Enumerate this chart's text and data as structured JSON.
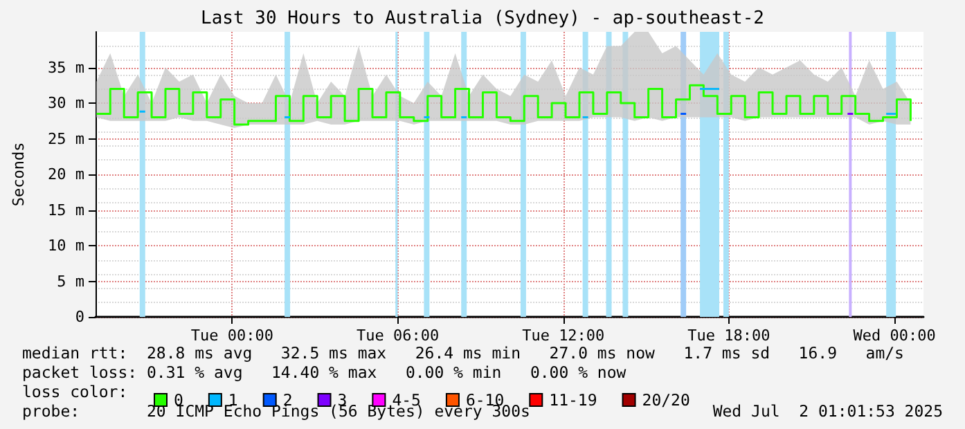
{
  "chart_data": {
    "type": "step",
    "title": "Last 30 Hours to Australia (Sydney) - ap-southeast-2",
    "ylabel": "Seconds",
    "x": [
      "2025-06-30T19:05",
      "2025-06-30T19:35",
      "2025-06-30T20:05",
      "2025-06-30T20:35",
      "2025-06-30T21:05",
      "2025-06-30T21:35",
      "2025-06-30T22:05",
      "2025-06-30T22:35",
      "2025-06-30T23:05",
      "2025-06-30T23:35",
      "2025-07-01T00:05",
      "2025-07-01T00:35",
      "2025-07-01T01:05",
      "2025-07-01T01:35",
      "2025-07-01T02:05",
      "2025-07-01T02:35",
      "2025-07-01T03:05",
      "2025-07-01T03:35",
      "2025-07-01T04:05",
      "2025-07-01T04:35",
      "2025-07-01T05:05",
      "2025-07-01T05:35",
      "2025-07-01T06:05",
      "2025-07-01T06:35",
      "2025-07-01T07:05",
      "2025-07-01T07:35",
      "2025-07-01T08:05",
      "2025-07-01T08:35",
      "2025-07-01T09:05",
      "2025-07-01T09:35",
      "2025-07-01T10:05",
      "2025-07-01T10:35",
      "2025-07-01T11:05",
      "2025-07-01T11:35",
      "2025-07-01T12:05",
      "2025-07-01T12:35",
      "2025-07-01T13:05",
      "2025-07-01T13:35",
      "2025-07-01T14:05",
      "2025-07-01T14:35",
      "2025-07-01T15:05",
      "2025-07-01T15:35",
      "2025-07-01T16:05",
      "2025-07-01T16:35",
      "2025-07-01T17:05",
      "2025-07-01T17:35",
      "2025-07-01T18:05",
      "2025-07-01T18:35",
      "2025-07-01T19:05",
      "2025-07-01T19:35",
      "2025-07-01T20:05",
      "2025-07-01T20:35",
      "2025-07-01T21:05",
      "2025-07-01T21:35",
      "2025-07-01T22:05",
      "2025-07-01T22:35",
      "2025-07-01T23:05",
      "2025-07-01T23:35",
      "2025-07-02T00:05",
      "2025-07-02T00:35"
    ],
    "series": [
      {
        "name": "0",
        "color": "#26ff00",
        "values": [
          28.5,
          32,
          28,
          31.5,
          28,
          32,
          28.5,
          31.5,
          28,
          30.5,
          27,
          27.5,
          27.5,
          31,
          27.5,
          31,
          28,
          31,
          27.5,
          32,
          28,
          31.5,
          28,
          27.5,
          31,
          28,
          32,
          28,
          31.5,
          28,
          27.5,
          31,
          28,
          30,
          28,
          31.5,
          28.5,
          31.5,
          30,
          28,
          32,
          28,
          30.5,
          32.5,
          31,
          28.5,
          31,
          28,
          31.5,
          28.5,
          31,
          28.5,
          31,
          28.5,
          31,
          28.5,
          27.5,
          28,
          30.5,
          27.5
        ],
        "lower": [
          28,
          27.5,
          27.5,
          27.5,
          27.5,
          27.5,
          28,
          27.5,
          27.5,
          27,
          26.5,
          27,
          27,
          27,
          27,
          27,
          27.5,
          27,
          27,
          27.5,
          27.5,
          27.5,
          27.5,
          27,
          27.5,
          27.5,
          27.5,
          27.5,
          27.5,
          27.5,
          27,
          27,
          27.5,
          27.5,
          27.5,
          27.5,
          28,
          28,
          28,
          27.5,
          28,
          27.5,
          28,
          28,
          28,
          28,
          28,
          27.5,
          28,
          28,
          28,
          28,
          28,
          28,
          28,
          28,
          27,
          27.5,
          27,
          27
        ],
        "upper": [
          33,
          37,
          31,
          34,
          30,
          35,
          33,
          34,
          30,
          34,
          31,
          30,
          30,
          34,
          30,
          37,
          30,
          33,
          31,
          38,
          31,
          34,
          31,
          30,
          33,
          31,
          37,
          31,
          34,
          32,
          31,
          34,
          33,
          36,
          31,
          35,
          34,
          38,
          38,
          40,
          40,
          37,
          38,
          36,
          34,
          37,
          34,
          33,
          35,
          34,
          35,
          36,
          34,
          33,
          35,
          31,
          36,
          32,
          33,
          30
        ]
      },
      {
        "name": "1",
        "type": "line",
        "color": "#00b8ff",
        "x": [
          "2025-06-30T20:39",
          "2025-06-30T20:51"
        ],
        "values": [
          28.8,
          28.8
        ]
      },
      {
        "type": "line",
        "color": "#02b8fe",
        "x": [
          "2025-07-01T01:54",
          "2025-07-01T02:06"
        ],
        "values": [
          28,
          28
        ]
      },
      {
        "type": "line",
        "color": "#04b8fd",
        "x": [
          "2025-07-01T06:57",
          "2025-07-01T07:09"
        ],
        "values": [
          28,
          28
        ]
      },
      {
        "type": "line",
        "color": "#06b8fc",
        "x": [
          "2025-07-01T08:18",
          "2025-07-01T08:30"
        ],
        "values": [
          28,
          28
        ]
      },
      {
        "type": "line",
        "color": "#08b8fb",
        "x": [
          "2025-07-01T12:42",
          "2025-07-01T12:54"
        ],
        "values": [
          28,
          28
        ]
      },
      {
        "type": "line",
        "color": "#0ab8fa",
        "x": [
          "2025-07-01T16:57",
          "2025-07-01T17:39"
        ],
        "values": [
          32,
          32
        ]
      },
      {
        "type": "line",
        "color": "#0cb8f9",
        "x": [
          "2025-07-01T23:42",
          "2025-07-02T00:03"
        ],
        "values": [
          28.5,
          28.5
        ]
      },
      {
        "name": "2",
        "type": "line",
        "color": "#0059ff",
        "x": [
          "2025-07-01T16:15",
          "2025-07-01T16:27"
        ],
        "values": [
          28.5,
          28.5
        ]
      },
      {
        "name": "3",
        "type": "line",
        "color": "#7e00ff",
        "x": [
          "2025-07-01T22:18",
          "2025-07-01T22:30"
        ],
        "values": [
          28.5,
          28.5
        ]
      },
      {
        "name": "4-5",
        "color": "#ff00ff",
        "values": [
          null,
          null,
          null,
          null,
          null,
          null,
          null,
          null,
          null,
          null,
          null,
          null,
          null,
          null,
          null,
          null,
          null,
          null,
          null,
          null,
          null,
          null,
          null,
          null,
          null,
          null,
          null,
          null,
          null,
          null,
          null,
          null,
          null,
          null,
          null,
          null,
          null,
          null,
          null,
          null,
          null,
          null,
          null,
          null,
          null,
          null,
          null,
          null,
          null,
          null,
          null,
          null,
          null,
          null,
          null,
          null,
          null,
          null,
          null,
          null
        ]
      },
      {
        "name": "6-10",
        "color": "#ff5500",
        "values": [
          null,
          null,
          null,
          null,
          null,
          null,
          null,
          null,
          null,
          null,
          null,
          null,
          null,
          null,
          null,
          null,
          null,
          null,
          null,
          null,
          null,
          null,
          null,
          null,
          null,
          null,
          null,
          null,
          null,
          null,
          null,
          null,
          null,
          null,
          null,
          null,
          null,
          null,
          null,
          null,
          null,
          null,
          null,
          null,
          null,
          null,
          null,
          null,
          null,
          null,
          null,
          null,
          null,
          null,
          null,
          null,
          null,
          null,
          null,
          null
        ]
      },
      {
        "name": "11-19",
        "color": "#ff0000",
        "values": [
          null,
          null,
          null,
          null,
          null,
          null,
          null,
          null,
          null,
          null,
          null,
          null,
          null,
          null,
          null,
          null,
          null,
          null,
          null,
          null,
          null,
          null,
          null,
          null,
          null,
          null,
          null,
          null,
          null,
          null,
          null,
          null,
          null,
          null,
          null,
          null,
          null,
          null,
          null,
          null,
          null,
          null,
          null,
          null,
          null,
          null,
          null,
          null,
          null,
          null,
          null,
          null,
          null,
          null,
          null,
          null,
          null,
          null,
          null,
          null
        ]
      },
      {
        "name": "20/20",
        "color": "#a10000",
        "values": [
          null,
          null,
          null,
          null,
          null,
          null,
          null,
          null,
          null,
          null,
          null,
          null,
          null,
          null,
          null,
          null,
          null,
          null,
          null,
          null,
          null,
          null,
          null,
          null,
          null,
          null,
          null,
          null,
          null,
          null,
          null,
          null,
          null,
          null,
          null,
          null,
          null,
          null,
          null,
          null,
          null,
          null,
          null,
          null,
          null,
          null,
          null,
          null,
          null,
          null,
          null,
          null,
          null,
          null,
          null,
          null,
          null,
          null,
          null,
          null
        ]
      }
    ],
    "legend_title": "loss color:",
    "legend": "bottom left",
    "xlim": [
      "2025-06-30T19:03",
      "2025-07-02T01:03"
    ],
    "xticks": [
      {
        "value": "2025-07-01T00:00",
        "label": "Tue 00:00"
      },
      {
        "value": "2025-07-01T06:00",
        "label": "Tue 06:00"
      },
      {
        "value": "2025-07-01T12:00",
        "label": "Tue 12:00"
      },
      {
        "value": "2025-07-01T18:00",
        "label": "Tue 18:00"
      },
      {
        "value": "2025-07-02T00:00",
        "label": "Wed 00:00"
      }
    ],
    "ylim": [
      0,
      40
    ],
    "yticks": [
      0,
      {
        "value": 5,
        "label": "5 m"
      },
      {
        "value": 10,
        "label": "10 m"
      },
      {
        "value": 15,
        "label": "15 m"
      },
      {
        "value": 20,
        "label": "20 m"
      },
      {
        "value": 25,
        "label": "25 m"
      },
      {
        "value": 30,
        "label": "30 m"
      },
      {
        "value": 35,
        "label": "35 m"
      }
    ],
    "grid": true,
    "bands": [
      {
        "axis": "x",
        "from": "2025-06-30T20:39",
        "to": "2025-06-30T20:51",
        "color": "#a8e2f8"
      },
      {
        "axis": "x",
        "from": "2025-07-01T01:54",
        "to": "2025-07-01T02:06",
        "color": "#a8e2f8"
      },
      {
        "axis": "x",
        "from": "2025-07-01T05:55",
        "to": "2025-07-01T06:00",
        "color": "#a8e2f8"
      },
      {
        "axis": "x",
        "from": "2025-07-01T06:57",
        "to": "2025-07-01T07:09",
        "color": "#a8e2f8"
      },
      {
        "axis": "x",
        "from": "2025-07-01T08:18",
        "to": "2025-07-01T08:30",
        "color": "#a8e2f8"
      },
      {
        "axis": "x",
        "from": "2025-07-01T10:27",
        "to": "2025-07-01T10:39",
        "color": "#a8e2f8"
      },
      {
        "axis": "x",
        "from": "2025-07-01T12:42",
        "to": "2025-07-01T12:54",
        "color": "#a8e2f8"
      },
      {
        "axis": "x",
        "from": "2025-07-01T13:33",
        "to": "2025-07-01T13:45",
        "color": "#a8e2f8"
      },
      {
        "axis": "x",
        "from": "2025-07-01T14:09",
        "to": "2025-07-01T14:21",
        "color": "#a8e2f8"
      },
      {
        "axis": "x",
        "from": "2025-07-01T16:15",
        "to": "2025-07-01T16:27",
        "color": "#a0ccf8"
      },
      {
        "axis": "x",
        "from": "2025-07-01T16:57",
        "to": "2025-07-01T17:39",
        "color": "#a8e2f8"
      },
      {
        "axis": "x",
        "from": "2025-07-01T17:48",
        "to": "2025-07-01T18:00",
        "color": "#a8e2f8"
      },
      {
        "axis": "x",
        "from": "2025-07-01T22:21",
        "to": "2025-07-01T22:27",
        "color": "#c8b0ff"
      },
      {
        "axis": "x",
        "from": "2025-07-01T23:42",
        "to": "2025-07-02T00:03",
        "color": "#a8e2f8"
      }
    ],
    "annotations": [
      "median rtt:  28.8 ms avg   32.5 ms max   26.4 ms min   27.0 ms now   1.7 ms sd   16.9   am/s",
      "packet loss: 0.31 % avg   14.40 % max   0.00 % min   0.00 % now",
      "probe:       20 ICMP Echo Pings (56 Bytes) every 300s",
      "Wed Jul  2 01:01:53 2025"
    ]
  }
}
